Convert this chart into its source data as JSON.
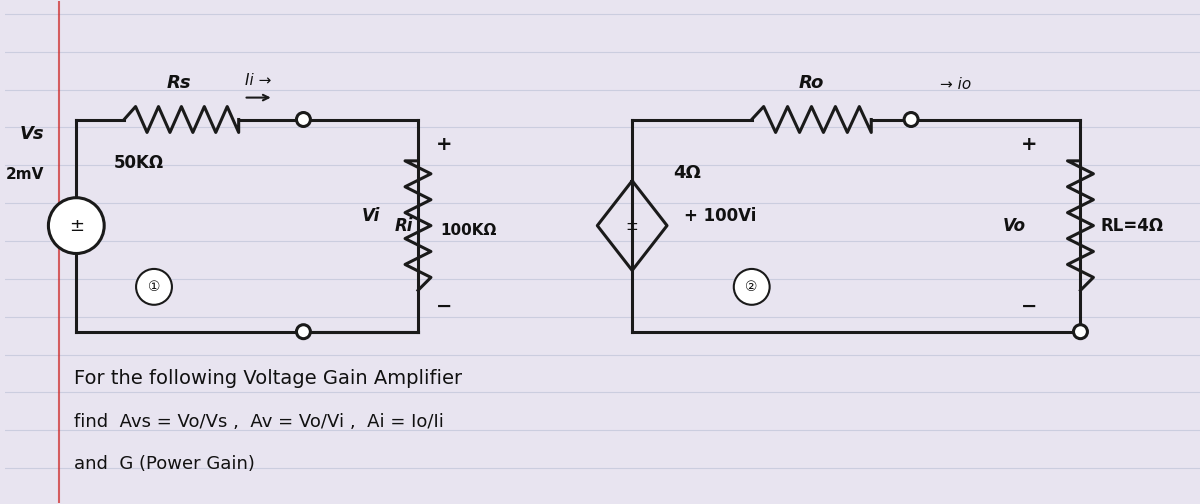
{
  "background_color": "#e8e4f0",
  "line_color": "#1a1a1a",
  "line_width": 2.2,
  "fig_width": 12.0,
  "fig_height": 5.04,
  "ruled_line_color": "#b0b8d0",
  "ruled_line_alpha": 0.5,
  "red_margin_color": "#cc2222",
  "text_color": "#111111",
  "circuit": {
    "left": {
      "Rs_label": "Rs",
      "Ri_label": "Ri",
      "Vs_label": "Vs",
      "Vs_value": "2mV",
      "Rs_value": "50KΩ",
      "Ri_value": "100KΩ",
      "ii_label": "Ii →",
      "Vi_label": "Vi"
    },
    "right": {
      "Ro_label": "Ro",
      "RL_label": "RL=4Ω",
      "Vo_label": "Vo",
      "dep_label": "+⃞ 100Vi",
      "Ro_value": "4Ω",
      "io_label": "→ io"
    }
  },
  "bottom_text_lines": [
    "For the following Voltage Gain Amplifier",
    "find  Avs = Vo/Vs ,  Av = Vo/Vi ,  Ai = Io/Ii",
    "and  G (Power Gain)"
  ],
  "node1_label": "①",
  "node2_label": "②"
}
